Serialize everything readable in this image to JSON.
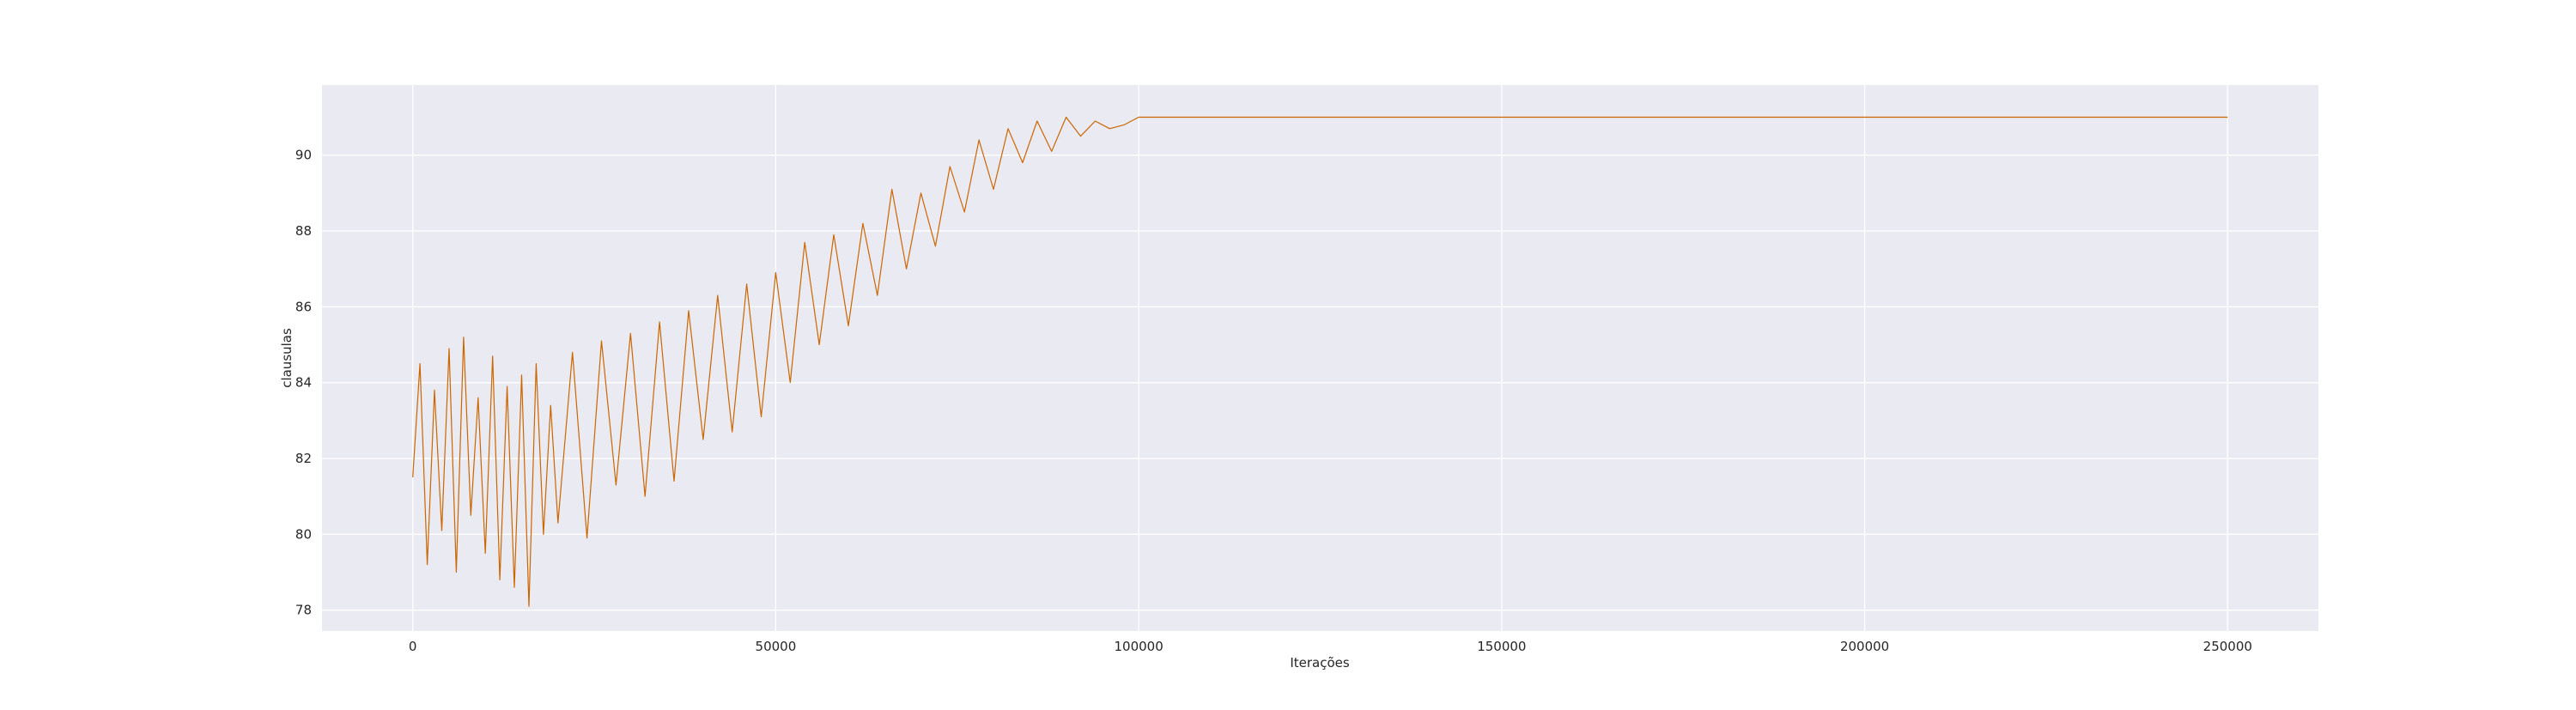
{
  "chart_data": {
    "type": "line",
    "title": "",
    "xlabel": "Iterações",
    "ylabel": "clausulas",
    "xlim": [
      -12500,
      262500
    ],
    "ylim": [
      77.45,
      91.85
    ],
    "grid": true,
    "legend": "none",
    "colors": {
      "background": "#eaeaf2",
      "grid": "#ffffff",
      "line": "#cc6600"
    },
    "x_ticks": [
      0,
      50000,
      100000,
      150000,
      200000,
      250000
    ],
    "x_tick_labels": [
      "0",
      "50000",
      "100000",
      "150000",
      "200000",
      "250000"
    ],
    "y_ticks": [
      78,
      80,
      82,
      84,
      86,
      88,
      90
    ],
    "y_tick_labels": [
      "78",
      "80",
      "82",
      "84",
      "86",
      "88",
      "90"
    ],
    "series": [
      {
        "name": "",
        "x": [
          0,
          1000,
          2000,
          3000,
          4000,
          5000,
          6000,
          7000,
          8000,
          9000,
          10000,
          11000,
          12000,
          13000,
          14000,
          15000,
          16000,
          17000,
          18000,
          19000,
          20000,
          22000,
          24000,
          26000,
          28000,
          30000,
          32000,
          34000,
          36000,
          38000,
          40000,
          42000,
          44000,
          46000,
          48000,
          50000,
          52000,
          54000,
          56000,
          58000,
          60000,
          62000,
          64000,
          66000,
          68000,
          70000,
          72000,
          74000,
          76000,
          78000,
          80000,
          82000,
          84000,
          86000,
          88000,
          90000,
          92000,
          94000,
          96000,
          98000,
          100000,
          102000,
          110000,
          150000,
          200000,
          250000
        ],
        "y": [
          81.5,
          84.5,
          79.2,
          83.8,
          80.1,
          84.9,
          79.0,
          85.2,
          80.5,
          83.6,
          79.5,
          84.7,
          78.8,
          83.9,
          78.6,
          84.2,
          78.1,
          84.5,
          80.0,
          83.4,
          80.3,
          84.8,
          79.9,
          85.1,
          81.3,
          85.3,
          81.0,
          85.6,
          81.4,
          85.9,
          82.5,
          86.3,
          82.7,
          86.6,
          83.1,
          86.9,
          84.0,
          87.7,
          85.0,
          87.9,
          85.5,
          88.2,
          86.3,
          89.1,
          87.0,
          89.0,
          87.6,
          89.7,
          88.5,
          90.4,
          89.1,
          90.7,
          89.8,
          90.9,
          90.1,
          91.0,
          90.5,
          90.9,
          90.7,
          90.8,
          91.0,
          91.0,
          91.0,
          91.0,
          91.0,
          91.0
        ]
      }
    ]
  }
}
